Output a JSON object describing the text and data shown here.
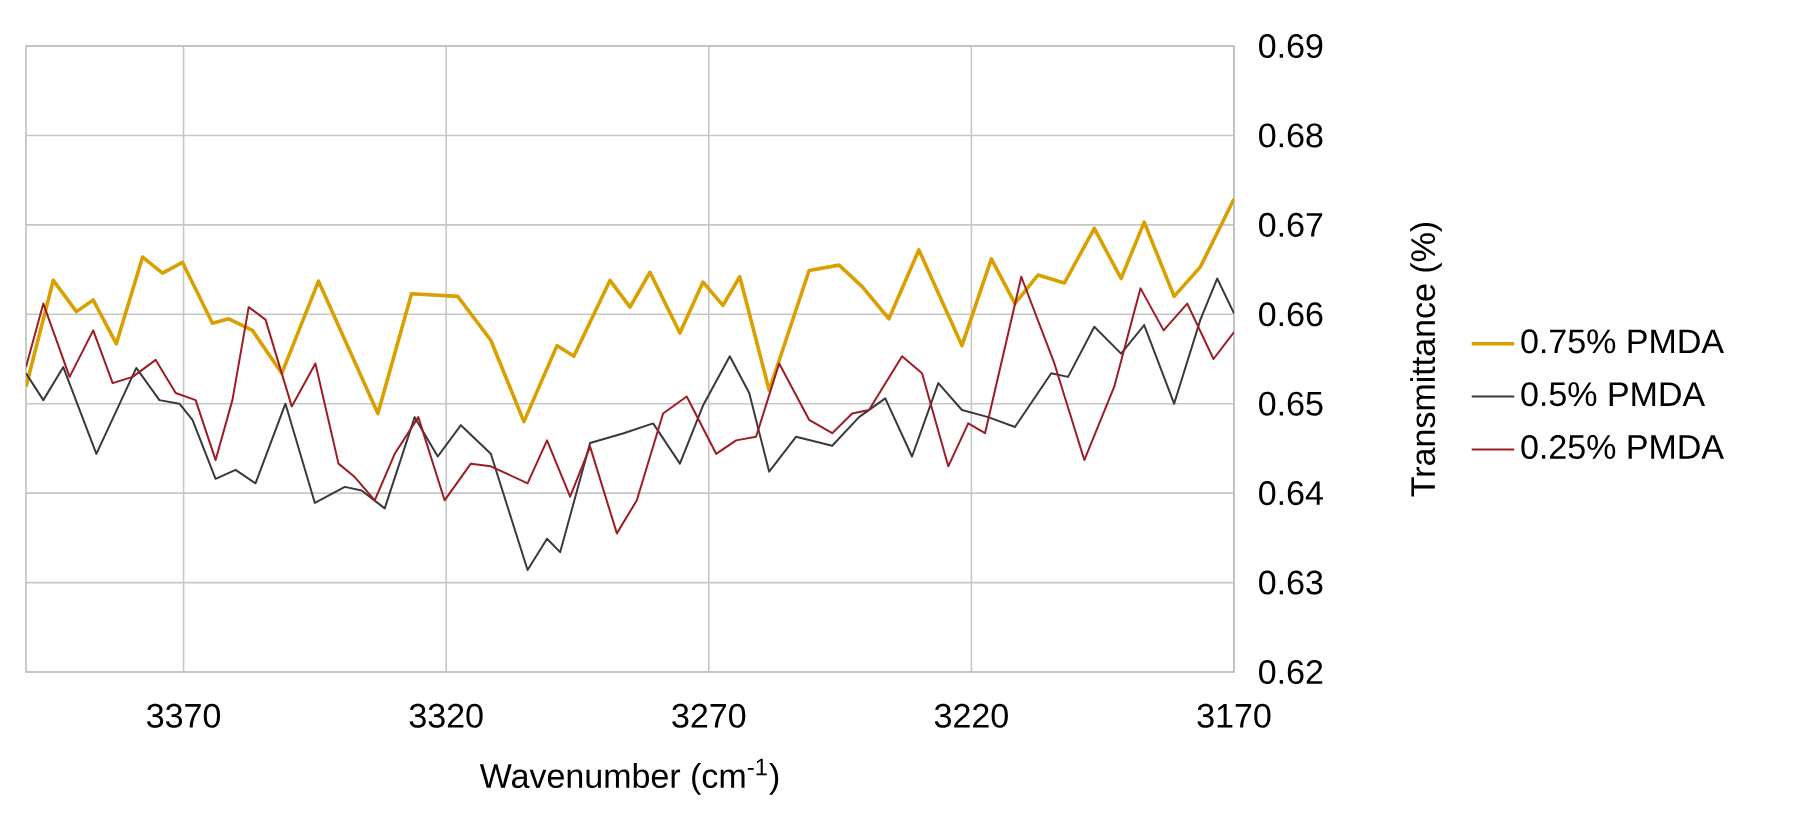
{
  "chart_data": {
    "type": "line",
    "xlabel": "Wavenumber (cm$^{-1}$)",
    "ylabel": "Transmittance (%)",
    "xlim": [
      3400,
      3170
    ],
    "xticks": [
      3370,
      3320,
      3270,
      3220,
      3170
    ],
    "ylim": [
      0.62,
      0.69
    ],
    "yticks": [
      0.62,
      0.63,
      0.64,
      0.65,
      0.66,
      0.67,
      0.68,
      0.69
    ],
    "grid": true,
    "legend": "right",
    "marker": "none",
    "line_style": "solid",
    "series": [
      {
        "name": "0.75% PMDA",
        "color": "#d9a000",
        "x": [
          3400,
          3394.8,
          3390.4,
          3387.2,
          3382.8,
          3377.8,
          3374.0,
          3370.2,
          3364.5,
          3361.4,
          3356.9,
          3351.3,
          3344.3,
          3333.0,
          3326.6,
          3317.8,
          3311.5,
          3305.2,
          3298.9,
          3295.7,
          3288.8,
          3285.0,
          3281.2,
          3275.5,
          3271.1,
          3267.3,
          3264.1,
          3258.5,
          3250.9,
          3245.2,
          3240.8,
          3235.7,
          3230.0,
          3221.8,
          3216.2,
          3211.7,
          3207.3,
          3202.3,
          3196.6,
          3191.5,
          3187.1,
          3181.4,
          3176.4,
          3170
        ],
        "values": [
          0.6519,
          0.6638,
          0.6603,
          0.6616,
          0.6567,
          0.6664,
          0.6646,
          0.6658,
          0.659,
          0.6595,
          0.6582,
          0.6534,
          0.6637,
          0.6489,
          0.6623,
          0.662,
          0.6571,
          0.648,
          0.6565,
          0.6553,
          0.6638,
          0.6608,
          0.6647,
          0.6579,
          0.6636,
          0.661,
          0.6642,
          0.6515,
          0.6649,
          0.6655,
          0.6631,
          0.6595,
          0.6672,
          0.6565,
          0.6662,
          0.6612,
          0.6644,
          0.6635,
          0.6696,
          0.664,
          0.6703,
          0.662,
          0.6653,
          0.6729
        ]
      },
      {
        "name": "0.5% PMDA",
        "color": "#3a3a3a",
        "x": [
          3400,
          3396.7,
          3392.9,
          3386.6,
          3379.0,
          3374.6,
          3370.8,
          3368.3,
          3363.9,
          3360.1,
          3356.3,
          3350.6,
          3345.0,
          3339.3,
          3336.1,
          3331.7,
          3326.0,
          3321.6,
          3317.2,
          3311.5,
          3304.5,
          3300.8,
          3298.3,
          3292.6,
          3286.2,
          3280.6,
          3275.5,
          3271.1,
          3266.0,
          3262.3,
          3258.5,
          3253.4,
          3246.5,
          3241.4,
          3236.4,
          3231.3,
          3226.3,
          3221.8,
          3216.8,
          3211.7,
          3204.8,
          3201.6,
          3196.6,
          3191.5,
          3187.1,
          3181.4,
          3176.4,
          3173.2,
          3170
        ],
        "values": [
          0.6534,
          0.6504,
          0.6541,
          0.6444,
          0.654,
          0.6504,
          0.65,
          0.6482,
          0.6416,
          0.6426,
          0.6411,
          0.65,
          0.6389,
          0.6407,
          0.6403,
          0.6383,
          0.6485,
          0.6441,
          0.6476,
          0.6444,
          0.6314,
          0.6349,
          0.6334,
          0.6456,
          0.6467,
          0.6478,
          0.6433,
          0.6498,
          0.6553,
          0.6512,
          0.6424,
          0.6463,
          0.6453,
          0.6485,
          0.6506,
          0.6441,
          0.6523,
          0.6493,
          0.6485,
          0.6474,
          0.6534,
          0.653,
          0.6586,
          0.6556,
          0.6588,
          0.65,
          0.6594,
          0.664,
          0.6601
        ]
      },
      {
        "name": "0.25% PMDA",
        "color": "#9e1c24",
        "x": [
          3400,
          3396.7,
          3391.7,
          3387.2,
          3383.5,
          3379.7,
          3375.3,
          3371.5,
          3367.7,
          3363.9,
          3360.7,
          3357.6,
          3354.4,
          3349.4,
          3344.9,
          3340.5,
          3337.4,
          3333.6,
          3329.8,
          3325.3,
          3320.3,
          3315.3,
          3311.5,
          3304.5,
          3300.8,
          3296.4,
          3292.6,
          3287.5,
          3283.7,
          3278.7,
          3274.2,
          3268.6,
          3264.8,
          3261.0,
          3256.6,
          3250.9,
          3246.5,
          3242.7,
          3239.5,
          3233.2,
          3229.4,
          3224.4,
          3220.6,
          3217.4,
          3210.5,
          3204.2,
          3198.5,
          3192.8,
          3187.8,
          3183.4,
          3178.9,
          3173.9,
          3170
        ],
        "values": [
          0.6541,
          0.6612,
          0.653,
          0.6582,
          0.6523,
          0.653,
          0.6549,
          0.6512,
          0.6504,
          0.6437,
          0.6504,
          0.6608,
          0.6594,
          0.6497,
          0.6545,
          0.6433,
          0.6418,
          0.6392,
          0.6444,
          0.6485,
          0.6392,
          0.6433,
          0.643,
          0.6411,
          0.6459,
          0.6396,
          0.6452,
          0.6355,
          0.6392,
          0.6489,
          0.6508,
          0.6444,
          0.6459,
          0.6463,
          0.6545,
          0.6482,
          0.6467,
          0.6489,
          0.6493,
          0.6553,
          0.6534,
          0.643,
          0.6478,
          0.6467,
          0.6642,
          0.6545,
          0.6437,
          0.6519,
          0.6629,
          0.6582,
          0.6612,
          0.655,
          0.658
        ]
      }
    ]
  }
}
